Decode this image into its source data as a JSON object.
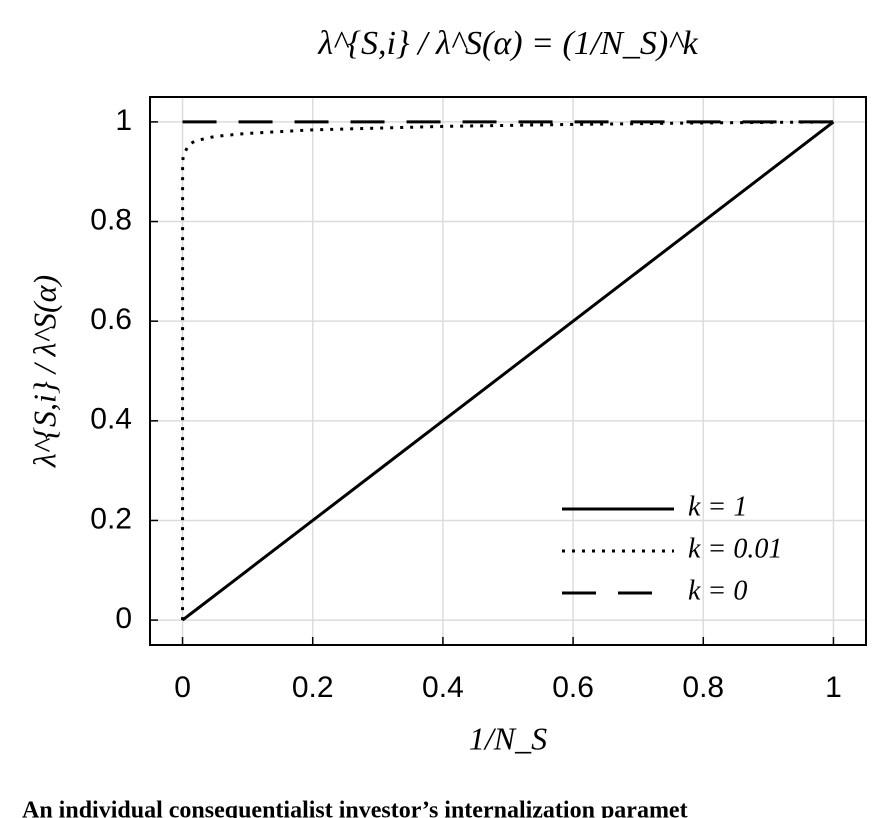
{
  "chart_data": {
    "type": "line",
    "title": "λ^{S,i} / λ^S(α) = (1/N_S)^k",
    "x_label": "1/N_S",
    "y_label": "λ^{S,i} / λ^S(α)",
    "caption": "An individual consequentialist investor’s internalization paramet",
    "x": [
      0,
      0.0001,
      0.001,
      0.01,
      0.02,
      0.05,
      0.1,
      0.2,
      0.4,
      0.6,
      0.8,
      1
    ],
    "series": [
      {
        "name": "k = 1",
        "color": "#000000",
        "line_style": "solid",
        "values": [
          0,
          0.0001,
          0.001,
          0.01,
          0.02,
          0.05,
          0.1,
          0.2,
          0.4,
          0.6,
          0.8,
          1
        ]
      },
      {
        "name": "k = 0.01",
        "color": "#000000",
        "line_style": "dotted",
        "values": [
          0,
          0.912,
          0.933,
          0.955,
          0.962,
          0.971,
          0.977,
          0.984,
          0.991,
          0.995,
          0.998,
          1
        ]
      },
      {
        "name": "k = 0",
        "color": "#000000",
        "line_style": "dashed",
        "values": [
          1,
          1,
          1,
          1,
          1,
          1,
          1,
          1,
          1,
          1,
          1,
          1
        ]
      }
    ],
    "xlim": [
      -0.05,
      1.05
    ],
    "ylim": [
      -0.05,
      1.05
    ],
    "xticks": [
      0,
      0.2,
      0.4,
      0.6,
      0.8,
      1
    ],
    "yticks": [
      0,
      0.2,
      0.4,
      0.6,
      0.8,
      1
    ],
    "grid": true,
    "legend": "lower right"
  }
}
